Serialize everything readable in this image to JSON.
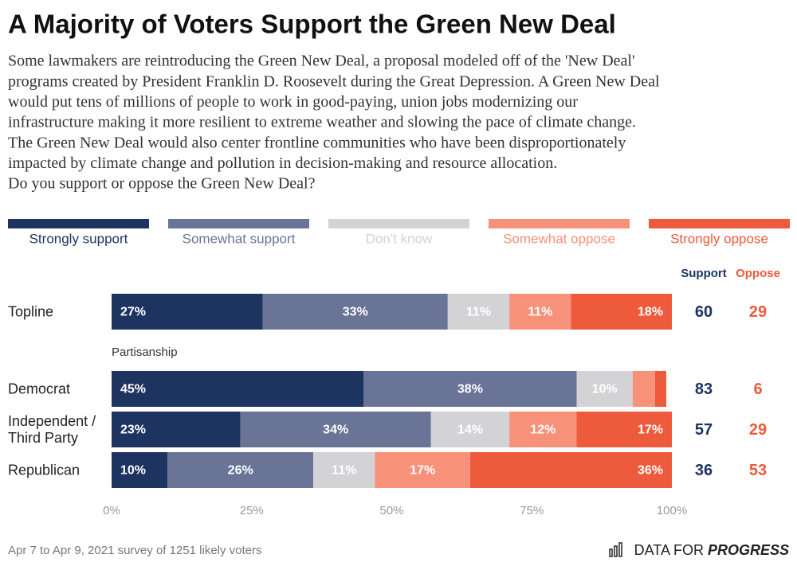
{
  "chart_data": {
    "type": "stacked_bar",
    "title": "A Majority of Voters Support the Green New Deal",
    "subtitle_lines": [
      "Some lawmakers are reintroducing the Green New Deal, a proposal modeled off of the 'New Deal'",
      "programs created by President Franklin D. Roosevelt during the Great Depression. A Green New Deal",
      "would put tens of millions of people to work in good-paying, union jobs modernizing our",
      "infrastructure making it more resilient to extreme weather and slowing the pace of climate change.",
      "The Green New Deal would also center frontline communities who have been disproportionately",
      "impacted by climate change and pollution in decision-making and resource allocation."
    ],
    "question": "Do you support or oppose the Green New Deal?",
    "categories": [
      "Topline",
      "Democrat",
      "Independent / Third Party",
      "Republican"
    ],
    "group_label": "Partisanship",
    "series": [
      {
        "name": "Strongly support",
        "color": "#1d3461",
        "label_color": "#ffffff",
        "values": [
          27,
          45,
          23,
          10
        ],
        "value_labels": [
          "27%",
          "45%",
          "23%",
          "10%"
        ]
      },
      {
        "name": "Somewhat support",
        "color": "#6a7497",
        "label_color": "#ffffff",
        "values": [
          33,
          38,
          34,
          26
        ],
        "value_labels": [
          "33%",
          "38%",
          "34%",
          "26%"
        ]
      },
      {
        "name": "Don't know",
        "color": "#d3d3d5",
        "label_color": "#ffffff",
        "values": [
          11,
          10,
          14,
          11
        ],
        "value_labels": [
          "11%",
          "10%",
          "14%",
          "11%"
        ]
      },
      {
        "name": "Somewhat oppose",
        "color": "#f8917a",
        "label_color": "#ffffff",
        "values": [
          11,
          4,
          12,
          17
        ],
        "value_labels": [
          "11%",
          null,
          "12%",
          "17%"
        ]
      },
      {
        "name": "Strongly oppose",
        "color": "#ee5a3c",
        "label_color": "#ffffff",
        "values": [
          18,
          2,
          17,
          36
        ],
        "value_labels": [
          "18%",
          null,
          "17%",
          "36%"
        ]
      }
    ],
    "totals": [
      {
        "name": "Support",
        "color": "#1d3461",
        "values": [
          60,
          83,
          57,
          36
        ]
      },
      {
        "name": "Oppose",
        "color": "#ee5a3c",
        "values": [
          29,
          6,
          29,
          53
        ]
      }
    ],
    "xlim": [
      0,
      100
    ],
    "xticks": [
      {
        "value": 0,
        "label": "0%"
      },
      {
        "value": 25,
        "label": "25%"
      },
      {
        "value": 50,
        "label": "50%"
      },
      {
        "value": 75,
        "label": "75%"
      },
      {
        "value": 100,
        "label": "100%"
      }
    ],
    "source": "Apr 7 to Apr 9, 2021 survey of 1251 likely voters",
    "logo": [
      "DATA FOR ",
      "PROGRESS"
    ]
  }
}
